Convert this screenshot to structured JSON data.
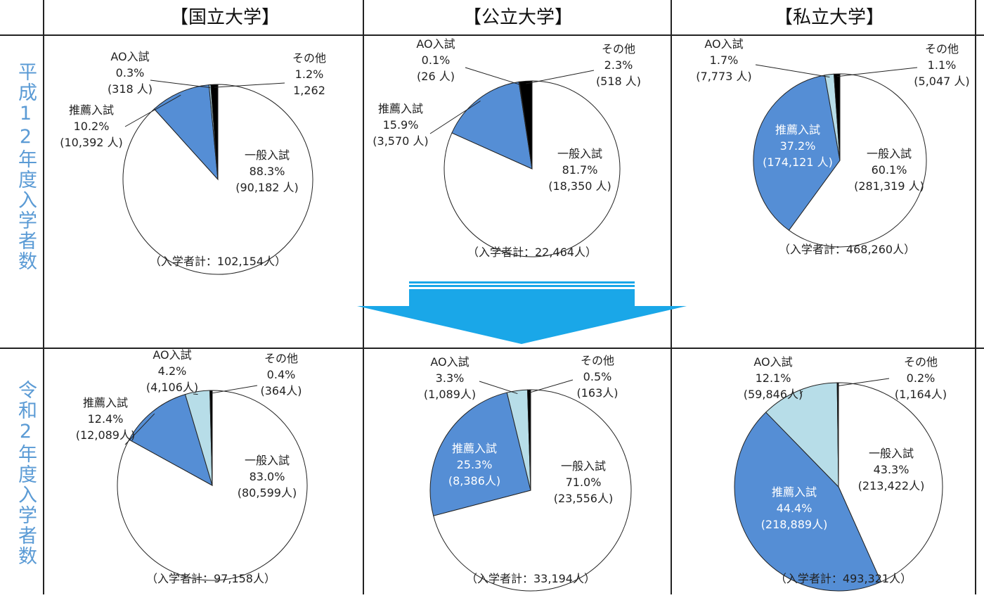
{
  "columns": [
    "【国立大学】",
    "【公立大学】",
    "【私立大学】"
  ],
  "rows": [
    "平成12年度入学者数",
    "令和2年度入学者数"
  ],
  "chart_data": [
    {
      "type": "pie",
      "categories": [
        "一般入試",
        "推薦入試",
        "AO入試",
        "その他"
      ],
      "values": [
        88.3,
        10.2,
        0.3,
        1.2
      ],
      "value_labels": [
        "88.3%",
        "10.2%",
        "0.3%",
        "1.2%"
      ],
      "counts": [
        90182,
        10392,
        318,
        1262
      ],
      "count_labels": [
        "(90,182 人)",
        "(10,392 人)",
        "(318 人)",
        "1,262"
      ],
      "colors": [
        "#ffffff",
        "#558ed5",
        "#b7dde8",
        "#000000"
      ],
      "note": "（入学者計：102,154人）"
    },
    {
      "type": "pie",
      "categories": [
        "一般入試",
        "推薦入試",
        "AO入試",
        "その他"
      ],
      "values": [
        81.7,
        15.9,
        0.1,
        2.3
      ],
      "value_labels": [
        "81.7%",
        "15.9%",
        "0.1%",
        "2.3%"
      ],
      "counts": [
        18350,
        3570,
        26,
        518
      ],
      "count_labels": [
        "(18,350 人)",
        "(3,570 人)",
        "(26 人)",
        "(518 人)"
      ],
      "colors": [
        "#ffffff",
        "#558ed5",
        "#b7dde8",
        "#000000"
      ],
      "note": "（入学者計：22,464人）"
    },
    {
      "type": "pie",
      "categories": [
        "一般入試",
        "推薦入試",
        "AO入試",
        "その他"
      ],
      "values": [
        60.1,
        37.2,
        1.7,
        1.1
      ],
      "value_labels": [
        "60.1%",
        "37.2%",
        "1.7%",
        "1.1%"
      ],
      "counts": [
        281319,
        174121,
        7773,
        5047
      ],
      "count_labels": [
        "(281,319 人)",
        "(174,121 人)",
        "(7,773 人)",
        "(5,047 人)"
      ],
      "colors": [
        "#ffffff",
        "#558ed5",
        "#b7dde8",
        "#000000"
      ],
      "note": "（入学者計：468,260人）"
    },
    {
      "type": "pie",
      "categories": [
        "一般入試",
        "推薦入試",
        "AO入試",
        "その他"
      ],
      "values": [
        83.0,
        12.4,
        4.2,
        0.4
      ],
      "value_labels": [
        "83.0%",
        "12.4%",
        "4.2%",
        "0.4%"
      ],
      "counts": [
        80599,
        12089,
        4106,
        364
      ],
      "count_labels": [
        "(80,599人)",
        "(12,089人)",
        "(4,106人)",
        "(364人)"
      ],
      "colors": [
        "#ffffff",
        "#558ed5",
        "#b7dde8",
        "#000000"
      ],
      "note": "（入学者計：97,158人）"
    },
    {
      "type": "pie",
      "categories": [
        "一般入試",
        "推薦入試",
        "AO入試",
        "その他"
      ],
      "values": [
        71.0,
        25.3,
        3.3,
        0.5
      ],
      "value_labels": [
        "71.0%",
        "25.3%",
        "3.3%",
        "0.5%"
      ],
      "counts": [
        23556,
        8386,
        1089,
        163
      ],
      "count_labels": [
        "(23,556人)",
        "(8,386人)",
        "(1,089人)",
        "(163人)"
      ],
      "colors": [
        "#ffffff",
        "#558ed5",
        "#b7dde8",
        "#000000"
      ],
      "note": "（入学者計：33,194人）"
    },
    {
      "type": "pie",
      "categories": [
        "一般入試",
        "推薦入試",
        "AO入試",
        "その他"
      ],
      "values": [
        43.3,
        44.4,
        12.1,
        0.2
      ],
      "value_labels": [
        "43.3%",
        "44.4%",
        "12.1%",
        "0.2%"
      ],
      "counts": [
        213422,
        218889,
        59846,
        1164
      ],
      "count_labels": [
        "(213,422人)",
        "(218,889人)",
        "(59,846人)",
        "(1,164人)"
      ],
      "colors": [
        "#ffffff",
        "#558ed5",
        "#b7dde8",
        "#000000"
      ],
      "note": "（入学者計：493,321人）"
    }
  ]
}
